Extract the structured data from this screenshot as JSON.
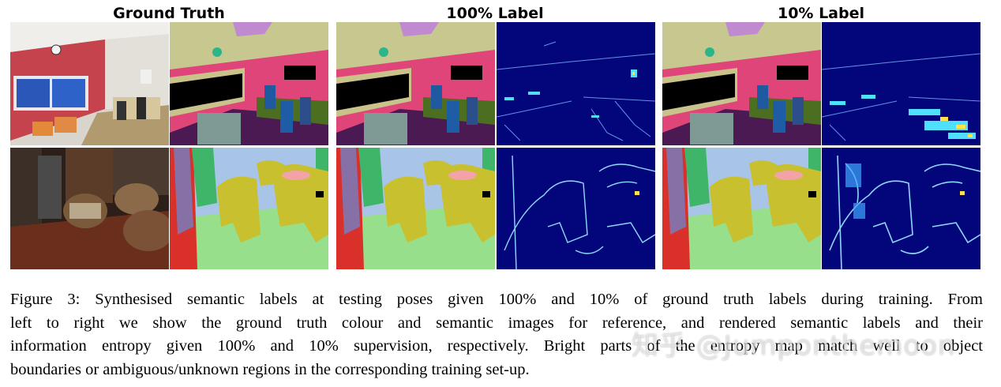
{
  "headers": {
    "ground_truth": "Ground Truth",
    "label_100": "100% Label",
    "label_10": "10% Label"
  },
  "caption": {
    "line1": "Figure 3: Synthesised semantic labels at testing poses given 100% and 10% of ground truth labels during training. From",
    "line2": "left to right we show the ground truth colour and semantic images for reference, and rendered semantic labels and their",
    "line3": "information entropy given 100% and 10% supervision, respectively. Bright parts of the entropy map match well to object",
    "line4": "boundaries or ambiguous/unknown regions in the corresponding training set-up."
  },
  "watermark": "知乎 @Jumponthemoon",
  "colors": {
    "entropy_bg": "#02067a",
    "semantic_pink": "#e0457a",
    "semantic_olive": "#c9c030",
    "semantic_green": "#97df8a",
    "semantic_wall": "#c6c890"
  }
}
